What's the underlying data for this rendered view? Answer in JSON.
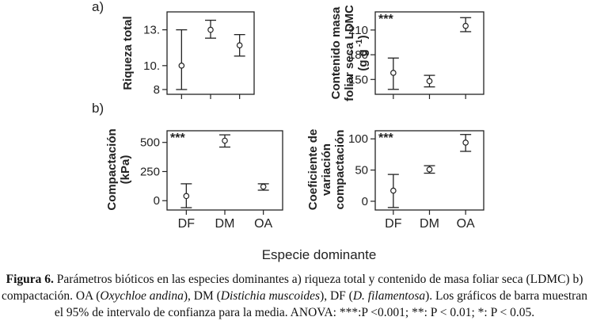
{
  "figure": {
    "panel_labels": [
      "a)",
      "b)"
    ],
    "shared_xlabel": "Especie dominante"
  },
  "caption": {
    "label": "Figura 6.",
    "text": " Parámetros bióticos en las especies dominantes a) riqueza total y contenido de masa foliar seca (LDMC) b) compactación. OA (",
    "oa_species": "Oxychloe andina",
    "text2": "), DM (",
    "dm_species": "Distichia muscoides",
    "text3": "), DF (",
    "df_species": "D. filamentosa",
    "text4": "). Los gráficos de barra muestran el 95% de intervalo de confianza para la media. ANOVA: ***:P <0.001; **: P < 0.01; *: P < 0.05."
  },
  "chart_data": [
    {
      "type": "scatter",
      "panel": "a)",
      "title": "",
      "ylabel": "Riqueza total",
      "categories": [
        "DF",
        "DM",
        "OA"
      ],
      "show_x_ticklabels": false,
      "means": [
        10,
        13,
        11.7
      ],
      "lower": [
        8,
        12.3,
        10.8
      ],
      "upper": [
        13,
        13.8,
        12.6
      ],
      "ylim": [
        7.6,
        14.5
      ],
      "yticks": [
        8,
        10,
        13
      ],
      "ytick_labels": [
        "8",
        "10.",
        "13."
      ],
      "significance": ""
    },
    {
      "type": "scatter",
      "panel": "a)",
      "title": "",
      "ylabel": "Contenido masa foliar seca LDMC (g g -1)",
      "ylabel_lines": [
        "Contenido masa",
        "foliar seca LDMC",
        "(g g -1)"
      ],
      "categories": [
        "DF",
        "DM",
        "OA"
      ],
      "show_x_ticklabels": false,
      "means": [
        158,
        148,
        215
      ],
      "lower": [
        138,
        141,
        208
      ],
      "upper": [
        176,
        155,
        225
      ],
      "ylim": [
        132,
        232
      ],
      "yticks": [
        150,
        180,
        210
      ],
      "ytick_labels": [
        "150",
        "180",
        "210"
      ],
      "significance": "***"
    },
    {
      "type": "scatter",
      "panel": "b)",
      "title": "",
      "ylabel": "Compactación (kPa)",
      "ylabel_lines": [
        "Compactación",
        "(kPa)"
      ],
      "categories": [
        "DF",
        "DM",
        "OA"
      ],
      "show_x_ticklabels": true,
      "means": [
        40,
        515,
        120
      ],
      "lower": [
        -60,
        460,
        90
      ],
      "upper": [
        145,
        565,
        145
      ],
      "ylim": [
        -80,
        600
      ],
      "yticks": [
        0,
        250,
        500
      ],
      "ytick_labels": [
        "0",
        "250",
        "500"
      ],
      "significance": "***"
    },
    {
      "type": "scatter",
      "panel": "b)",
      "title": "",
      "ylabel": "Coeficiente de variación compactación",
      "ylabel_lines": [
        "Coeficiente de",
        "variación",
        "compactación"
      ],
      "categories": [
        "DF",
        "DM",
        "OA"
      ],
      "show_x_ticklabels": true,
      "means": [
        17,
        51,
        94
      ],
      "lower": [
        -10,
        45,
        80
      ],
      "upper": [
        43,
        57,
        107
      ],
      "ylim": [
        -14,
        113
      ],
      "yticks": [
        0,
        50,
        100
      ],
      "ytick_labels": [
        "0",
        "50",
        "100"
      ],
      "significance": "***"
    }
  ]
}
